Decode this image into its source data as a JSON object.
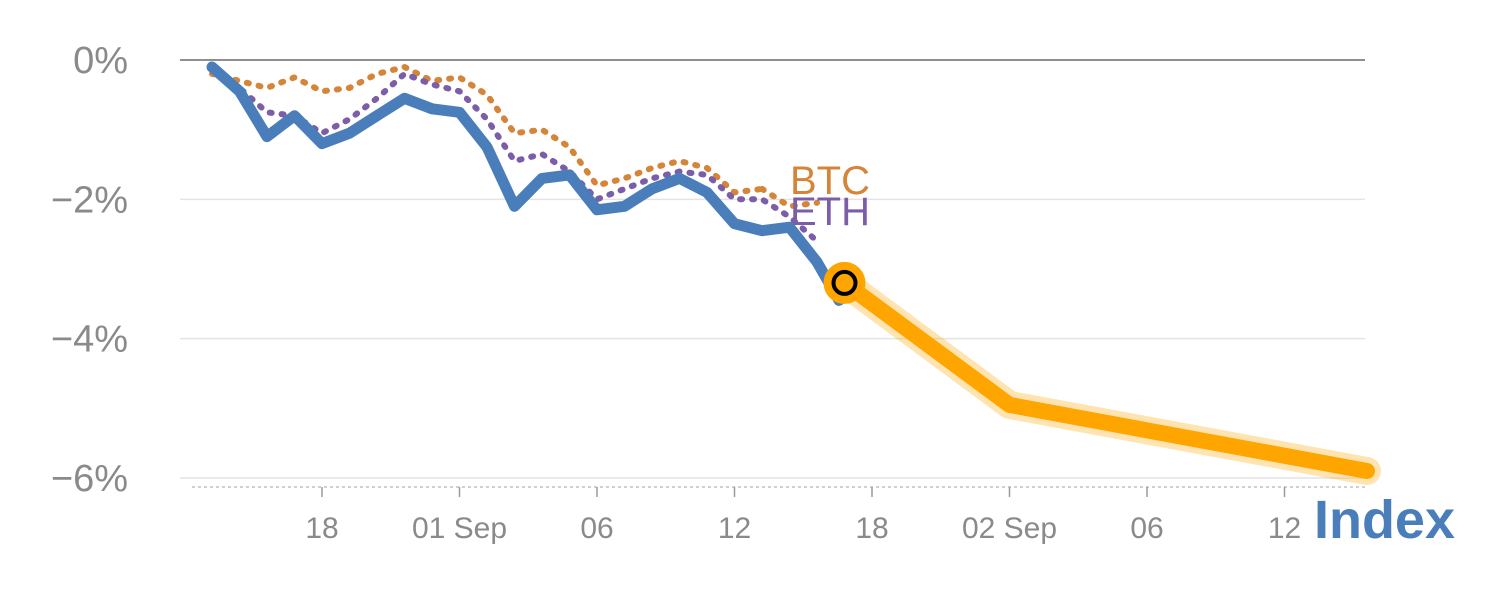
{
  "chart_data": {
    "type": "line",
    "corner_label": "Index",
    "y_axis": {
      "ylim": [
        -6.2,
        0.3
      ],
      "ticks": [
        0,
        -2,
        -4,
        -6
      ],
      "tick_labels": [
        "0%",
        "−2%",
        "−4%",
        "−6%"
      ],
      "grid": true
    },
    "x_axis": {
      "ticks": [
        {
          "index": 4,
          "label": "18"
        },
        {
          "index": 9,
          "label": "01 Sep"
        },
        {
          "index": 14,
          "label": "06"
        },
        {
          "index": 19,
          "label": "12"
        },
        {
          "index": 24,
          "label": "18"
        },
        {
          "index": 29,
          "label": "02 Sep"
        },
        {
          "index": 34,
          "label": "06"
        },
        {
          "index": 39,
          "label": "12"
        }
      ]
    },
    "series": [
      {
        "key": "btc",
        "name": "BTC",
        "color": "#d4853a",
        "style": "dotted",
        "x": [
          0,
          1,
          2,
          3,
          4,
          5,
          6,
          7,
          8,
          9,
          10,
          11,
          12,
          13,
          14,
          15,
          16,
          17,
          18,
          19,
          20
        ],
        "values": [
          -0.2,
          -0.3,
          -0.4,
          -0.25,
          -0.45,
          -0.4,
          -0.2,
          -0.1,
          -0.3,
          -0.25,
          -0.5,
          -1.05,
          -1.0,
          -1.25,
          -1.8,
          -1.7,
          -1.55,
          -1.45,
          -1.55,
          -1.9,
          -1.85
        ]
      },
      {
        "key": "btc_tail",
        "name": "",
        "color": "#d4853a",
        "style": "dotted",
        "x": [
          20,
          21,
          22
        ],
        "values": [
          -1.85,
          -2.1,
          -2.05
        ]
      },
      {
        "key": "eth",
        "name": "ETH",
        "color": "#7b5ea7",
        "style": "dotted",
        "x": [
          0,
          1,
          2,
          3,
          4,
          5,
          6,
          7,
          8,
          9,
          10,
          11,
          12,
          13,
          14,
          15,
          16,
          17,
          18,
          19,
          20,
          21,
          22
        ],
        "values": [
          -0.15,
          -0.4,
          -0.75,
          -0.8,
          -1.05,
          -0.85,
          -0.55,
          -0.2,
          -0.35,
          -0.45,
          -0.85,
          -1.45,
          -1.35,
          -1.6,
          -2.0,
          -1.85,
          -1.7,
          -1.6,
          -1.65,
          -2.0,
          -2.0,
          -2.25,
          -2.6
        ]
      },
      {
        "key": "index",
        "name": "",
        "color": "#4a7ebb",
        "style": "solid",
        "x": [
          0,
          1,
          2,
          3,
          4,
          5,
          6,
          7,
          8,
          9,
          10,
          11,
          12,
          13,
          14,
          15,
          16,
          17,
          18,
          19,
          20,
          21,
          22
        ],
        "values": [
          -0.1,
          -0.45,
          -1.1,
          -0.8,
          -1.2,
          -1.05,
          -0.8,
          -0.55,
          -0.7,
          -0.75,
          -1.25,
          -2.1,
          -1.7,
          -1.65,
          -2.15,
          -2.1,
          -1.85,
          -1.7,
          -1.9,
          -2.35,
          -2.45,
          -2.4,
          -2.9
        ]
      },
      {
        "key": "index_tail",
        "name": "",
        "color": "#4a7ebb",
        "style": "solid",
        "x": [
          22,
          22.8
        ],
        "values": [
          -2.9,
          -3.45
        ]
      },
      {
        "key": "projection",
        "name": "",
        "color": "#ffa500",
        "style": "solid",
        "x": [
          23,
          29,
          42
        ],
        "values": [
          -3.2,
          -4.95,
          -5.9
        ]
      }
    ],
    "marker": {
      "x": 23,
      "y": -3.2,
      "fill": "#ffa500",
      "ring": "#000000"
    }
  }
}
